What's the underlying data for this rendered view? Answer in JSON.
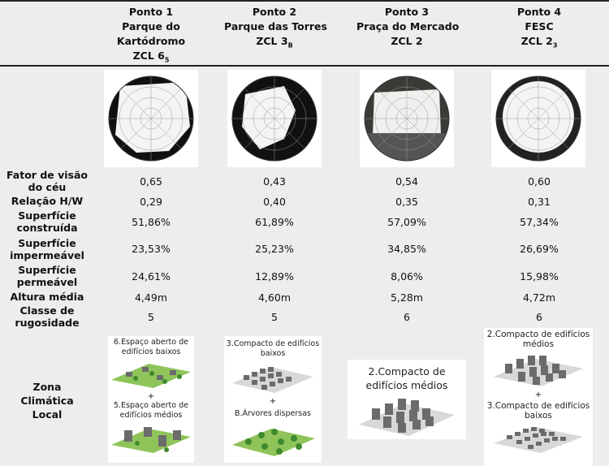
{
  "points": [
    {
      "id": "Ponto 1",
      "name": "Parque do",
      "name2": "Kartódromo",
      "zcl": "ZCL 6",
      "zcl_sub": "5",
      "values": [
        "0,65",
        "0,29",
        "51,86%",
        "23,53%",
        "24,61%",
        "4,49m",
        "5"
      ],
      "lcz_captions": [
        "6.Espaço aberto de edifícios baixos",
        "5.Espaço aberto de edifícios médios"
      ]
    },
    {
      "id": "Ponto 2",
      "name": "Parque das Torres",
      "name2": "",
      "zcl": "ZCL 3",
      "zcl_sub": "B",
      "values": [
        "0,43",
        "0,40",
        "61,89%",
        "25,23%",
        "12,89%",
        "4,60m",
        "5"
      ],
      "lcz_captions": [
        "3.Compacto de edifícios baixos",
        "B.Árvores dispersas"
      ]
    },
    {
      "id": "Ponto 3",
      "name": "Praça do Mercado",
      "name2": "",
      "zcl": "ZCL 2",
      "zcl_sub": "",
      "values": [
        "0,54",
        "0,35",
        "57,09%",
        "34,85%",
        "8,06%",
        "5,28m",
        "6"
      ],
      "lcz_captions": [
        "2.Compacto de edifícios médios"
      ]
    },
    {
      "id": "Ponto 4",
      "name": "FESC",
      "name2": "",
      "zcl": "ZCL 2",
      "zcl_sub": "3",
      "values": [
        "0,60",
        "0,31",
        "57,34%",
        "26,69%",
        "15,98%",
        "4,72m",
        "6"
      ],
      "lcz_captions": [
        "2.Compacto de edifícios médios",
        "3.Compacto de edifícios baixos"
      ]
    }
  ],
  "row_labels": [
    [
      "Fator de visão",
      "do céu"
    ],
    [
      "Relação H/W"
    ],
    [
      "Superfície",
      "construída"
    ],
    [
      "Superfície",
      "impermeável"
    ],
    [
      "Superfície",
      "permeável"
    ],
    [
      "Altura média"
    ],
    [
      "Classe de",
      "rugosidade"
    ]
  ],
  "lcz_label": [
    "Zona",
    "Climática",
    "Local"
  ],
  "plus": "+",
  "colors": {
    "header_bg": "#ededed",
    "grass": "#8fc45a",
    "building": "#6b6b6b",
    "tree": "#3f8a2e"
  }
}
